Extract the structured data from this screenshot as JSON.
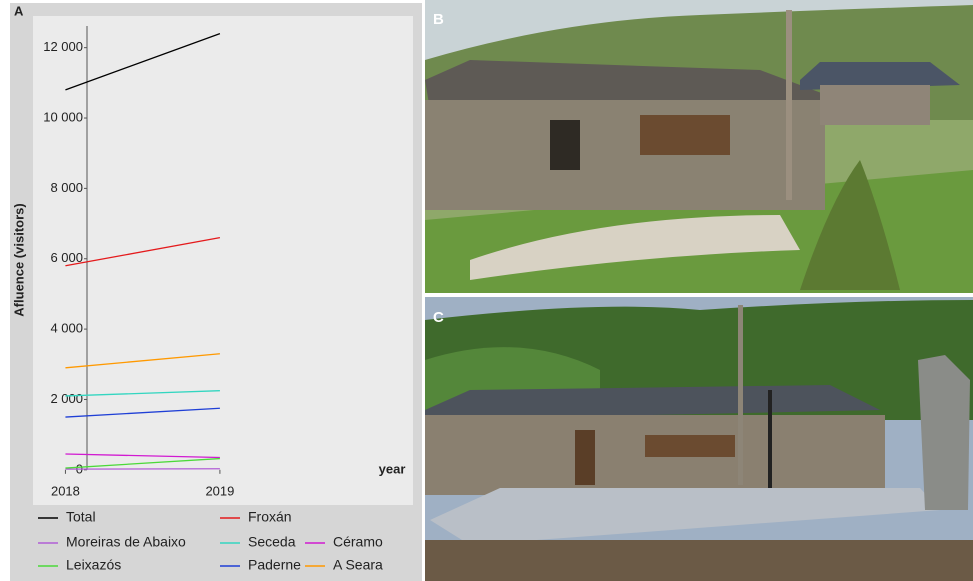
{
  "chart_data": {
    "type": "line",
    "panel_label": "A",
    "ylabel": "Afluence (visitors)",
    "xlabel": "year",
    "x": [
      2018,
      2019
    ],
    "xlim": [
      2017.79,
      2020.25
    ],
    "xticks": [
      2018,
      2019
    ],
    "ylim": [
      -1000,
      12900
    ],
    "yticks": [
      0,
      {
        "value": 2000,
        "label": "2 000"
      },
      {
        "value": 4000,
        "label": "4 000"
      },
      {
        "value": 6000,
        "label": "6 000"
      },
      {
        "value": 8000,
        "label": "8 000"
      },
      {
        "value": 10000,
        "label": "10 000"
      },
      {
        "value": 12000,
        "label": "12 000"
      }
    ],
    "series": [
      {
        "name": "Total",
        "color": "#000000",
        "values": [
          10800,
          12400
        ]
      },
      {
        "name": "Froxán",
        "color": "#e41a1c",
        "values": [
          5800,
          6600
        ]
      },
      {
        "name": "Moreiras de Abaixo",
        "color": "#b15ed6",
        "values": [
          20,
          30
        ]
      },
      {
        "name": "Seceda",
        "color": "#33d6c0",
        "values": [
          2100,
          2250
        ]
      },
      {
        "name": "Céramo",
        "color": "#d11ad1",
        "values": [
          450,
          350
        ]
      },
      {
        "name": "Leixazós",
        "color": "#4cd93a",
        "values": [
          50,
          320
        ]
      },
      {
        "name": "Paderne",
        "color": "#1f3fd6",
        "values": [
          1500,
          1750
        ]
      },
      {
        "name": "A Seara",
        "color": "#ff9900",
        "values": [
          2900,
          3300
        ]
      }
    ]
  },
  "photos": {
    "b_label": "B",
    "c_label": "C"
  }
}
